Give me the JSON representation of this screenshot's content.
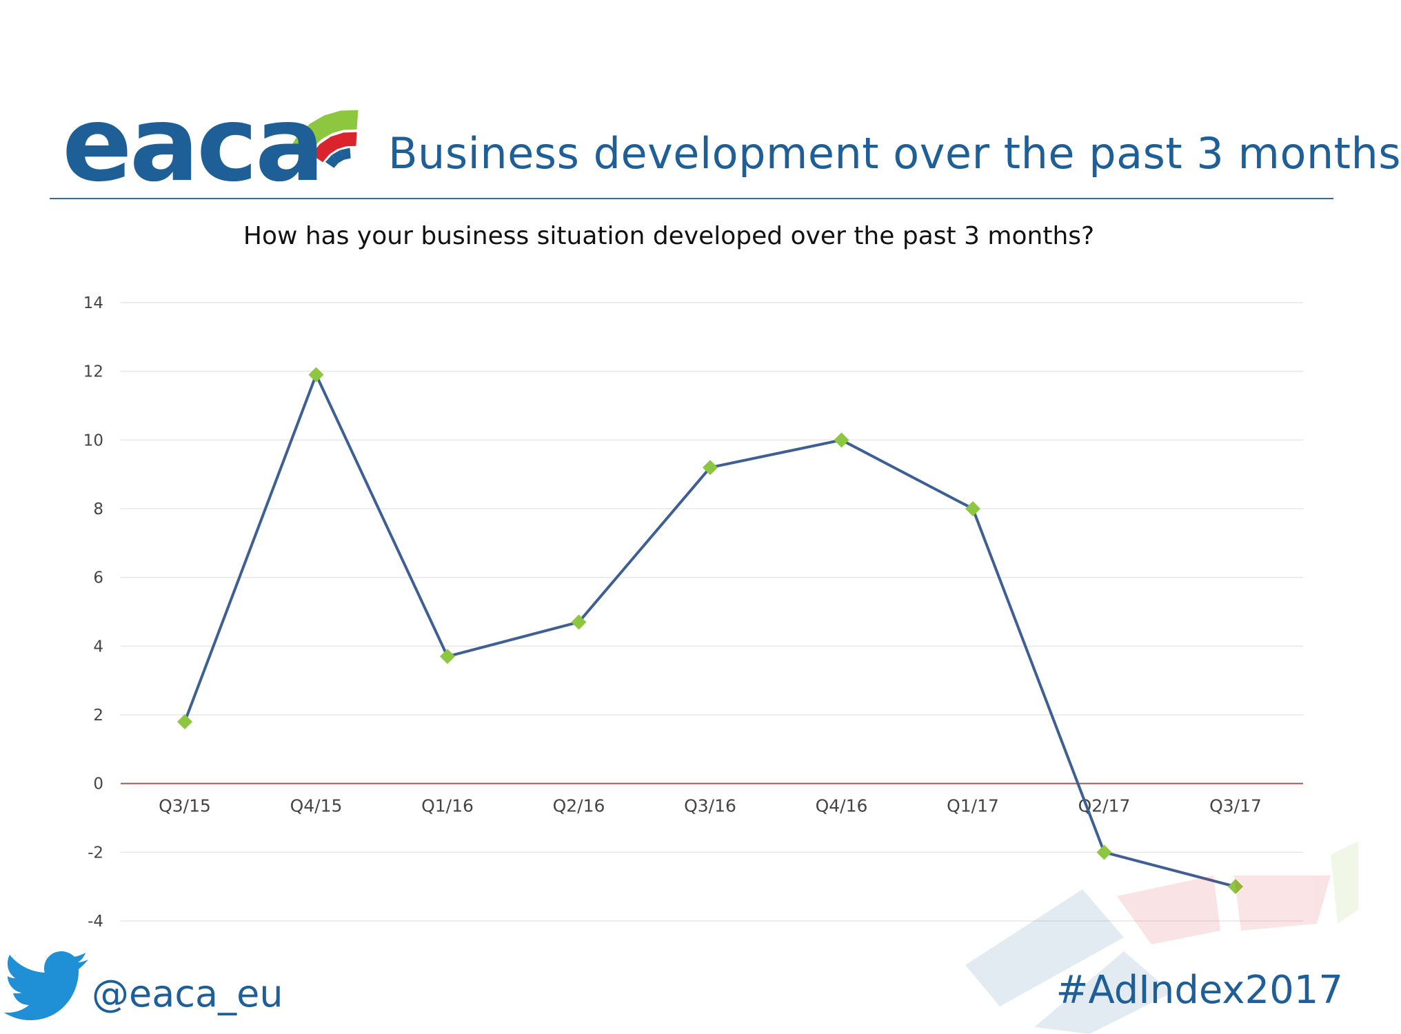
{
  "header": {
    "logo_text": "eaca",
    "title": "Business development over the past 3 months"
  },
  "footer": {
    "twitter_handle": "@eaca_eu",
    "hashtag": "#AdIndex2017",
    "twitter_icon": "twitter-bird-icon"
  },
  "colors": {
    "brand_blue": "#1f5f97",
    "line": "#3d5f94",
    "marker": "#8dc63f",
    "zero_line": "#b0504a",
    "logo_green": "#8dc63f",
    "logo_red": "#d9232d"
  },
  "chart_data": {
    "type": "line",
    "title": "How has your business situation developed over the past 3 months?",
    "xlabel": "",
    "ylabel": "",
    "categories": [
      "Q3/15",
      "Q4/15",
      "Q1/16",
      "Q2/16",
      "Q3/16",
      "Q4/16",
      "Q1/17",
      "Q2/17",
      "Q3/17"
    ],
    "series": [
      {
        "values": [
          1.8,
          11.9,
          3.7,
          4.7,
          9.2,
          10.0,
          8.0,
          -2.0,
          -3.0
        ]
      }
    ],
    "ylim": [
      -4,
      14
    ],
    "yticks": [
      14,
      12,
      10,
      8,
      6,
      4,
      2,
      0,
      -2,
      -4
    ],
    "grid": true,
    "legend": "none",
    "marker": "diamond"
  }
}
